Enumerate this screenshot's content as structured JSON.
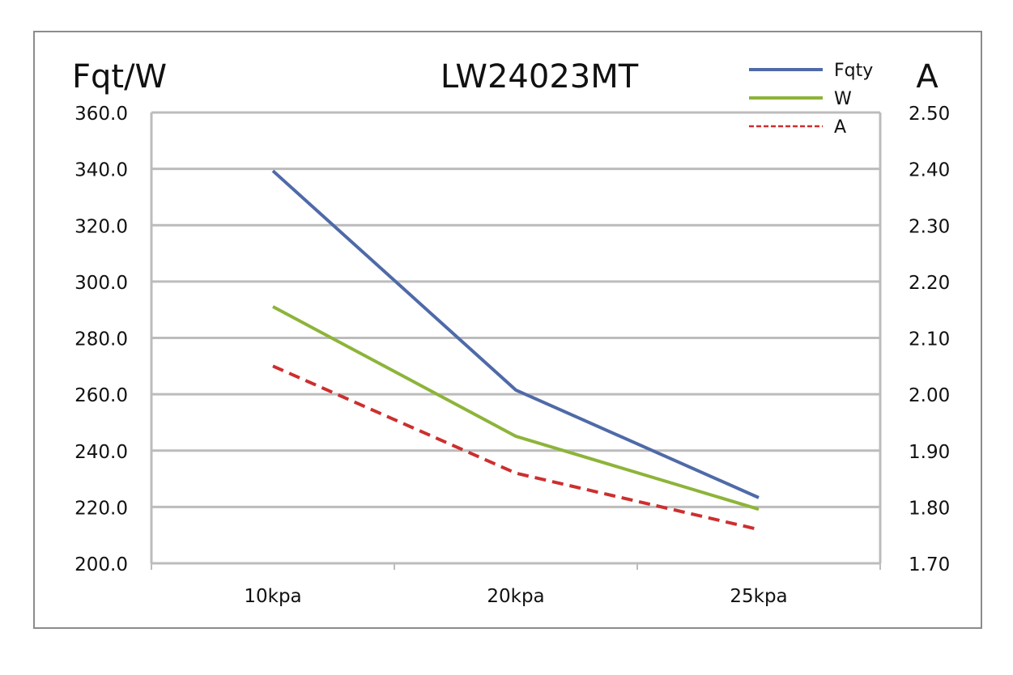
{
  "chart_data": {
    "type": "line",
    "title": "LW24023MT",
    "ylabel": "Fqt/W",
    "y2label": "A",
    "categories": [
      "10kpa",
      "20kpa",
      "25kpa"
    ],
    "ylim": [
      200,
      360
    ],
    "yticks": [
      "200.0",
      "220.0",
      "240.0",
      "260.0",
      "280.0",
      "300.0",
      "320.0",
      "340.0",
      "360.0"
    ],
    "y2lim": [
      1.7,
      2.5
    ],
    "y2ticks": [
      "1.70",
      "1.80",
      "1.90",
      "2.00",
      "2.10",
      "2.20",
      "2.30",
      "2.40",
      "2.50"
    ],
    "grid": true,
    "legend_position": "top-right",
    "series": [
      {
        "name": "Fqty",
        "axis": "left",
        "color": "#4f6aa8",
        "dashed": false,
        "values": [
          339.3,
          261.5,
          223.3
        ]
      },
      {
        "name": "W",
        "axis": "left",
        "color": "#8db43a",
        "dashed": false,
        "values": [
          291.1,
          245.1,
          219.2
        ]
      },
      {
        "name": "A",
        "axis": "right",
        "color": "#cc2f2f",
        "dashed": true,
        "values": [
          2.05,
          1.86,
          1.76
        ]
      }
    ]
  }
}
